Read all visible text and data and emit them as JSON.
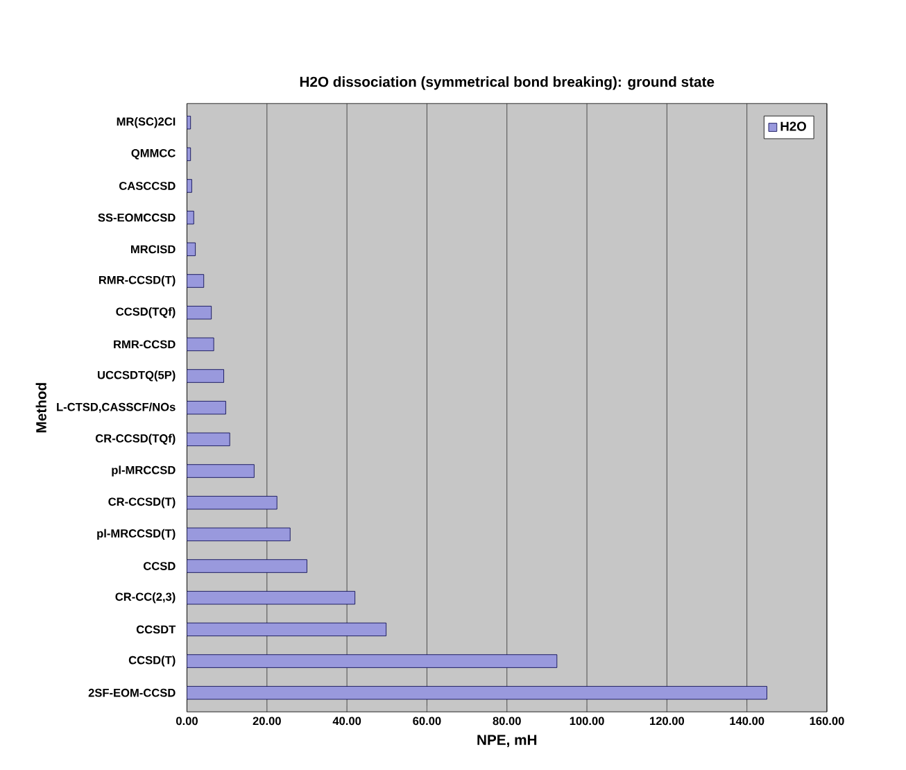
{
  "chart_data": {
    "type": "bar",
    "orientation": "horizontal",
    "title": "H2O dissociation (symmetrical bond breaking): ground state",
    "xlabel": "NPE, mH",
    "ylabel": "Method",
    "categories": [
      "MR(SC)2CI",
      "QMMCC",
      "CASCCSD",
      "SS-EOMCCSD",
      "MRCISD",
      "RMR-CCSD(T)",
      "CCSD(TQf)",
      "RMR-CCSD",
      "UCCSDTQ(5P)",
      "L-CTSD,CASSCF/NOs",
      "CR-CCSD(TQf)",
      "pl-MRCCSD",
      "CR-CCSD(T)",
      "pl-MRCCSD(T)",
      "CCSD",
      "CR-CC(2,3)",
      "CCSDT",
      "CCSD(T)",
      "2SF-EOM-CCSD"
    ],
    "series": [
      {
        "name": "H2O",
        "color": "#9999dd",
        "values": [
          0.9,
          0.9,
          1.2,
          1.7,
          2.1,
          4.2,
          6.1,
          6.7,
          9.2,
          9.7,
          10.7,
          16.8,
          22.5,
          25.8,
          30.0,
          42.0,
          49.8,
          92.5,
          145.0
        ]
      }
    ],
    "xlim": [
      0,
      160
    ],
    "xticks": [
      {
        "value": 0,
        "label": "0.00"
      },
      {
        "value": 20,
        "label": "20.00"
      },
      {
        "value": 40,
        "label": "40.00"
      },
      {
        "value": 60,
        "label": "60.00"
      },
      {
        "value": 80,
        "label": "80.00"
      },
      {
        "value": 100,
        "label": "100.00"
      },
      {
        "value": 120,
        "label": "120.00"
      },
      {
        "value": 140,
        "label": "140.00"
      },
      {
        "value": 160,
        "label": "160.00"
      }
    ],
    "grid": "x",
    "legend": "top right"
  }
}
